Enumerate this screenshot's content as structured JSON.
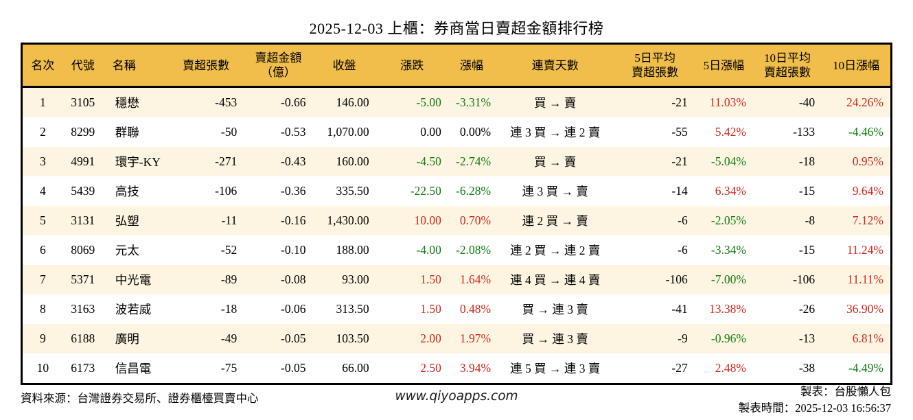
{
  "title": "2025-12-03 上櫃：券商當日賣超金額排行榜",
  "colors": {
    "header_bg": "#F1BE4B",
    "row_alt_bg": "#FDF5E1",
    "up_red": "#D0281E",
    "down_green": "#107C10",
    "border": "#000000"
  },
  "table": {
    "columns": [
      {
        "key": "rank",
        "label": "名次"
      },
      {
        "key": "code",
        "label": "代號"
      },
      {
        "key": "name",
        "label": "名稱"
      },
      {
        "key": "net_sell_volume",
        "label": "賣超張數"
      },
      {
        "key": "net_sell_amount",
        "label": "賣超金額\n（億）"
      },
      {
        "key": "close",
        "label": "收盤"
      },
      {
        "key": "change",
        "label": "漲跌"
      },
      {
        "key": "change_pct",
        "label": "漲幅"
      },
      {
        "key": "consecutive_days",
        "label": "連賣天數"
      },
      {
        "key": "avg5_volume",
        "label": "5日平均\n賣超張數"
      },
      {
        "key": "pct5",
        "label": "5日漲幅"
      },
      {
        "key": "avg10_volume",
        "label": "10日平均\n賣超張數"
      },
      {
        "key": "pct10",
        "label": "10日漲幅"
      }
    ],
    "rows": [
      {
        "cells": [
          {
            "t": "1"
          },
          {
            "t": "3105"
          },
          {
            "t": "穩懋"
          },
          {
            "t": "-453"
          },
          {
            "t": "-0.66"
          },
          {
            "t": "146.00"
          },
          {
            "t": "-5.00",
            "c": "g"
          },
          {
            "t": "-3.31%",
            "c": "g"
          },
          {
            "t": "買 → 賣"
          },
          {
            "t": "-21"
          },
          {
            "t": "11.03%",
            "c": "r"
          },
          {
            "t": "-40"
          },
          {
            "t": "24.26%",
            "c": "r"
          }
        ]
      },
      {
        "cells": [
          {
            "t": "2"
          },
          {
            "t": "8299"
          },
          {
            "t": "群聯"
          },
          {
            "t": "-50"
          },
          {
            "t": "-0.53"
          },
          {
            "t": "1,070.00"
          },
          {
            "t": "0.00"
          },
          {
            "t": "0.00%"
          },
          {
            "t": "連 3 買 → 連 2 賣"
          },
          {
            "t": "-55"
          },
          {
            "t": "5.42%",
            "c": "r"
          },
          {
            "t": "-133"
          },
          {
            "t": "-4.46%",
            "c": "g"
          }
        ]
      },
      {
        "cells": [
          {
            "t": "3"
          },
          {
            "t": "4991"
          },
          {
            "t": "環宇-KY"
          },
          {
            "t": "-271"
          },
          {
            "t": "-0.43"
          },
          {
            "t": "160.00"
          },
          {
            "t": "-4.50",
            "c": "g"
          },
          {
            "t": "-2.74%",
            "c": "g"
          },
          {
            "t": "買 → 賣"
          },
          {
            "t": "-21"
          },
          {
            "t": "-5.04%",
            "c": "g"
          },
          {
            "t": "-18"
          },
          {
            "t": "0.95%",
            "c": "r"
          }
        ]
      },
      {
        "cells": [
          {
            "t": "4"
          },
          {
            "t": "5439"
          },
          {
            "t": "高技"
          },
          {
            "t": "-106"
          },
          {
            "t": "-0.36"
          },
          {
            "t": "335.50"
          },
          {
            "t": "-22.50",
            "c": "g"
          },
          {
            "t": "-6.28%",
            "c": "g"
          },
          {
            "t": "連 3 買 → 賣"
          },
          {
            "t": "-14"
          },
          {
            "t": "6.34%",
            "c": "r"
          },
          {
            "t": "-15"
          },
          {
            "t": "9.64%",
            "c": "r"
          }
        ]
      },
      {
        "cells": [
          {
            "t": "5"
          },
          {
            "t": "3131"
          },
          {
            "t": "弘塑"
          },
          {
            "t": "-11"
          },
          {
            "t": "-0.16"
          },
          {
            "t": "1,430.00"
          },
          {
            "t": "10.00",
            "c": "r"
          },
          {
            "t": "0.70%",
            "c": "r"
          },
          {
            "t": "連 2 買 → 賣"
          },
          {
            "t": "-6"
          },
          {
            "t": "-2.05%",
            "c": "g"
          },
          {
            "t": "-8"
          },
          {
            "t": "7.12%",
            "c": "r"
          }
        ]
      },
      {
        "cells": [
          {
            "t": "6"
          },
          {
            "t": "8069"
          },
          {
            "t": "元太"
          },
          {
            "t": "-52"
          },
          {
            "t": "-0.10"
          },
          {
            "t": "188.00"
          },
          {
            "t": "-4.00",
            "c": "g"
          },
          {
            "t": "-2.08%",
            "c": "g"
          },
          {
            "t": "連 2 買 → 連 2 賣"
          },
          {
            "t": "-6"
          },
          {
            "t": "-3.34%",
            "c": "g"
          },
          {
            "t": "-15"
          },
          {
            "t": "11.24%",
            "c": "r"
          }
        ]
      },
      {
        "cells": [
          {
            "t": "7"
          },
          {
            "t": "5371"
          },
          {
            "t": "中光電"
          },
          {
            "t": "-89"
          },
          {
            "t": "-0.08"
          },
          {
            "t": "93.00"
          },
          {
            "t": "1.50",
            "c": "r"
          },
          {
            "t": "1.64%",
            "c": "r"
          },
          {
            "t": "連 4 買 → 連 4 賣"
          },
          {
            "t": "-106"
          },
          {
            "t": "-7.00%",
            "c": "g"
          },
          {
            "t": "-106"
          },
          {
            "t": "11.11%",
            "c": "r"
          }
        ]
      },
      {
        "cells": [
          {
            "t": "8"
          },
          {
            "t": "3163"
          },
          {
            "t": "波若威"
          },
          {
            "t": "-18"
          },
          {
            "t": "-0.06"
          },
          {
            "t": "313.50"
          },
          {
            "t": "1.50",
            "c": "r"
          },
          {
            "t": "0.48%",
            "c": "r"
          },
          {
            "t": "買 → 連 3 賣"
          },
          {
            "t": "-41"
          },
          {
            "t": "13.38%",
            "c": "r"
          },
          {
            "t": "-26"
          },
          {
            "t": "36.90%",
            "c": "r"
          }
        ]
      },
      {
        "cells": [
          {
            "t": "9"
          },
          {
            "t": "6188"
          },
          {
            "t": "廣明"
          },
          {
            "t": "-49"
          },
          {
            "t": "-0.05"
          },
          {
            "t": "103.50"
          },
          {
            "t": "2.00",
            "c": "r"
          },
          {
            "t": "1.97%",
            "c": "r"
          },
          {
            "t": "買 → 連 3 賣"
          },
          {
            "t": "-9"
          },
          {
            "t": "-0.96%",
            "c": "g"
          },
          {
            "t": "-13"
          },
          {
            "t": "6.81%",
            "c": "r"
          }
        ]
      },
      {
        "cells": [
          {
            "t": "10"
          },
          {
            "t": "6173"
          },
          {
            "t": "信昌電"
          },
          {
            "t": "-75"
          },
          {
            "t": "-0.05"
          },
          {
            "t": "66.00"
          },
          {
            "t": "2.50",
            "c": "r"
          },
          {
            "t": "3.94%",
            "c": "r"
          },
          {
            "t": "連 5 買 → 連 3 賣"
          },
          {
            "t": "-27"
          },
          {
            "t": "2.48%",
            "c": "r"
          },
          {
            "t": "-38"
          },
          {
            "t": "-4.49%",
            "c": "g"
          }
        ]
      }
    ]
  },
  "footer": {
    "source": "資料來源：台灣證券交易所、證券櫃檯買賣中心",
    "website": "www.qiyoapps.com",
    "made_by": "製表：台股懶人包",
    "made_time": "製表時間：2025-12-03 16:56:37"
  }
}
